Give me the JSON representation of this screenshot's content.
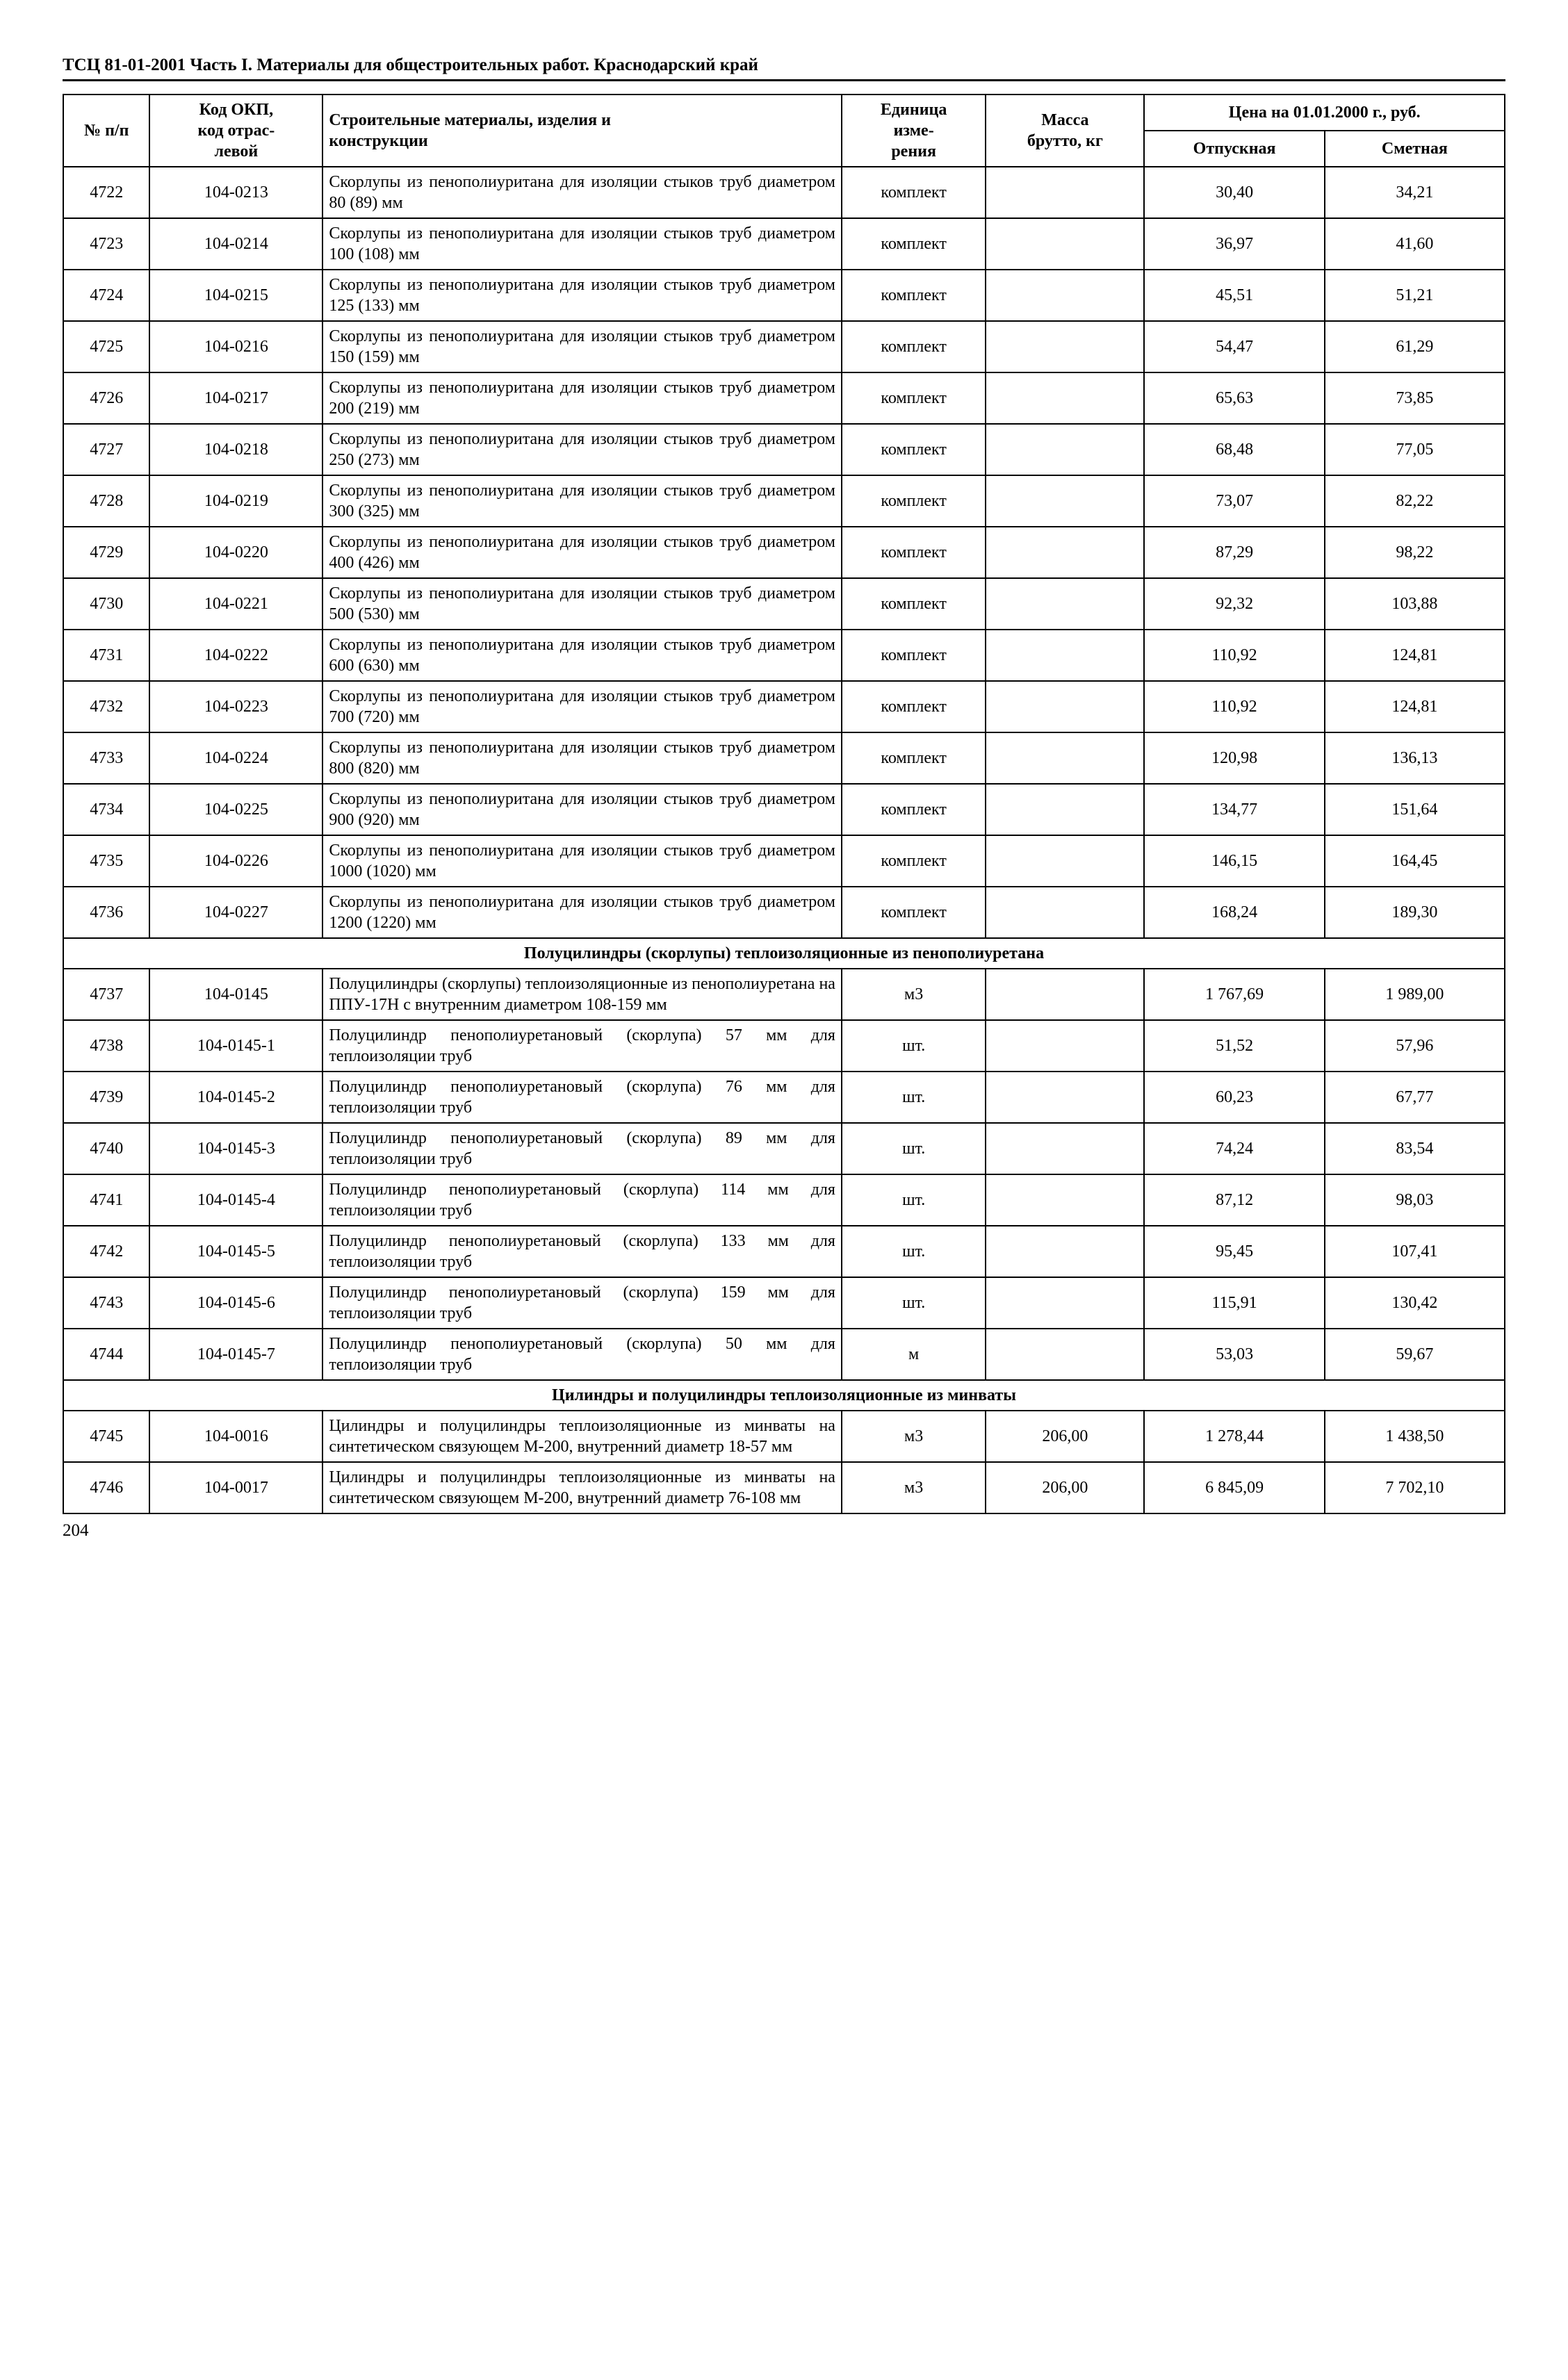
{
  "header": "ТСЦ 81-01-2001 Часть I. Материалы для общестроительных работ. Краснодарский край",
  "footer": "204",
  "columns": {
    "num": "№ п/п",
    "code1": "Код ОКП,",
    "code2": "код отрас-",
    "code3": "левой",
    "name1": "Строительные материалы, изделия и",
    "name2": "конструкции",
    "unit1": "Единица",
    "unit2": "изме-",
    "unit3": "рения",
    "mass1": "Масса",
    "mass2": "брутто, кг",
    "price_hdr": "Цена на 01.01.2000 г., руб.",
    "p1": "Отпускная",
    "p2": "Сметная"
  },
  "rows": [
    {
      "n": "4722",
      "code": "104-0213",
      "name": "Скорлупы из пенополиуритана для изоляции стыков труб диаметром 80 (89) мм",
      "unit": "комплект",
      "mass": "",
      "p1": "30,40",
      "p2": "34,21"
    },
    {
      "n": "4723",
      "code": "104-0214",
      "name": "Скорлупы из пенополиуритана для изоляции стыков труб диаметром 100 (108) мм",
      "unit": "комплект",
      "mass": "",
      "p1": "36,97",
      "p2": "41,60"
    },
    {
      "n": "4724",
      "code": "104-0215",
      "name": "Скорлупы из пенополиуритана для изоляции стыков труб диаметром 125 (133) мм",
      "unit": "комплект",
      "mass": "",
      "p1": "45,51",
      "p2": "51,21"
    },
    {
      "n": "4725",
      "code": "104-0216",
      "name": "Скорлупы из пенополиуритана для изоляции стыков труб диаметром 150 (159) мм",
      "unit": "комплект",
      "mass": "",
      "p1": "54,47",
      "p2": "61,29"
    },
    {
      "n": "4726",
      "code": "104-0217",
      "name": "Скорлупы из пенополиуритана для изоляции стыков труб диаметром 200 (219) мм",
      "unit": "комплект",
      "mass": "",
      "p1": "65,63",
      "p2": "73,85"
    },
    {
      "n": "4727",
      "code": "104-0218",
      "name": "Скорлупы из пенополиуритана для изоляции стыков труб диаметром 250 (273) мм",
      "unit": "комплект",
      "mass": "",
      "p1": "68,48",
      "p2": "77,05"
    },
    {
      "n": "4728",
      "code": "104-0219",
      "name": "Скорлупы из пенополиуритана для изоляции стыков труб диаметром 300 (325) мм",
      "unit": "комплект",
      "mass": "",
      "p1": "73,07",
      "p2": "82,22"
    },
    {
      "n": "4729",
      "code": "104-0220",
      "name": "Скорлупы из пенополиуритана для изоляции стыков труб диаметром 400 (426) мм",
      "unit": "комплект",
      "mass": "",
      "p1": "87,29",
      "p2": "98,22"
    },
    {
      "n": "4730",
      "code": "104-0221",
      "name": "Скорлупы из пенополиуритана для изоляции стыков труб диаметром 500 (530) мм",
      "unit": "комплект",
      "mass": "",
      "p1": "92,32",
      "p2": "103,88"
    },
    {
      "n": "4731",
      "code": "104-0222",
      "name": "Скорлупы из пенополиуритана для изоляции стыков труб диаметром 600 (630) мм",
      "unit": "комплект",
      "mass": "",
      "p1": "110,92",
      "p2": "124,81"
    },
    {
      "n": "4732",
      "code": "104-0223",
      "name": "Скорлупы из пенополиуритана для изоляции стыков труб диаметром 700 (720) мм",
      "unit": "комплект",
      "mass": "",
      "p1": "110,92",
      "p2": "124,81"
    },
    {
      "n": "4733",
      "code": "104-0224",
      "name": "Скорлупы из пенополиуритана для изоляции стыков труб диаметром 800 (820) мм",
      "unit": "комплект",
      "mass": "",
      "p1": "120,98",
      "p2": "136,13"
    },
    {
      "n": "4734",
      "code": "104-0225",
      "name": "Скорлупы из пенополиуритана для изоляции стыков труб диаметром 900 (920) мм",
      "unit": "комплект",
      "mass": "",
      "p1": "134,77",
      "p2": "151,64"
    },
    {
      "n": "4735",
      "code": "104-0226",
      "name": "Скорлупы из пенополиуритана для изоляции стыков труб диаметром 1000 (1020) мм",
      "unit": "комплект",
      "mass": "",
      "p1": "146,15",
      "p2": "164,45"
    },
    {
      "n": "4736",
      "code": "104-0227",
      "name": "Скорлупы из пенополиуритана для изоляции стыков труб диаметром 1200 (1220) мм",
      "unit": "комплект",
      "mass": "",
      "p1": "168,24",
      "p2": "189,30"
    },
    {
      "section": "Полуцилиндры (скорлупы) теплоизоляционные из пенополиуретана"
    },
    {
      "n": "4737",
      "code": "104-0145",
      "name": "Полуцилиндры (скорлупы) теплоизоляционные из пенополиуретана на ППУ-17Н с внутренним диаметром 108-159 мм",
      "unit": "м3",
      "mass": "",
      "p1": "1 767,69",
      "p2": "1 989,00"
    },
    {
      "n": "4738",
      "code": "104-0145-1",
      "name": "Полуцилиндр пенополиуретановый (скорлупа) 57 мм для теплоизоляции труб",
      "unit": "шт.",
      "mass": "",
      "p1": "51,52",
      "p2": "57,96"
    },
    {
      "n": "4739",
      "code": "104-0145-2",
      "name": "Полуцилиндр пенополиуретановый (скорлупа) 76 мм для теплоизоляции труб",
      "unit": "шт.",
      "mass": "",
      "p1": "60,23",
      "p2": "67,77"
    },
    {
      "n": "4740",
      "code": "104-0145-3",
      "name": "Полуцилиндр пенополиуретановый (скорлупа) 89 мм для теплоизоляции труб",
      "unit": "шт.",
      "mass": "",
      "p1": "74,24",
      "p2": "83,54"
    },
    {
      "n": "4741",
      "code": "104-0145-4",
      "name": "Полуцилиндр пенополиуретановый (скорлупа) 114 мм для теплоизоляции труб",
      "unit": "шт.",
      "mass": "",
      "p1": "87,12",
      "p2": "98,03"
    },
    {
      "n": "4742",
      "code": "104-0145-5",
      "name": "Полуцилиндр пенополиуретановый (скорлупа) 133 мм для теплоизоляции труб",
      "unit": "шт.",
      "mass": "",
      "p1": "95,45",
      "p2": "107,41"
    },
    {
      "n": "4743",
      "code": "104-0145-6",
      "name": "Полуцилиндр пенополиуретановый (скорлупа) 159 мм для теплоизоляции труб",
      "unit": "шт.",
      "mass": "",
      "p1": "115,91",
      "p2": "130,42"
    },
    {
      "n": "4744",
      "code": "104-0145-7",
      "name": "Полуцилиндр пенополиуретановый  (скорлупа) 50 мм для теплоизоляции труб",
      "unit": "м",
      "mass": "",
      "p1": "53,03",
      "p2": "59,67"
    },
    {
      "section": "Цилиндры и полуцилиндры теплоизоляционные из минваты"
    },
    {
      "n": "4745",
      "code": "104-0016",
      "name": "Цилиндры и полуцилиндры теплоизоляционные из минваты на синтетическом связующем М-200, внутренний диаметр 18-57 мм",
      "unit": "м3",
      "mass": "206,00",
      "p1": "1 278,44",
      "p2": "1 438,50"
    },
    {
      "n": "4746",
      "code": "104-0017",
      "name": "Цилиндры и полуцилиндры теплоизоляционные из минваты на синтетическом связующем М-200, внутренний диаметр 76-108 мм",
      "unit": "м3",
      "mass": "206,00",
      "p1": "6 845,09",
      "p2": "7 702,10"
    }
  ]
}
